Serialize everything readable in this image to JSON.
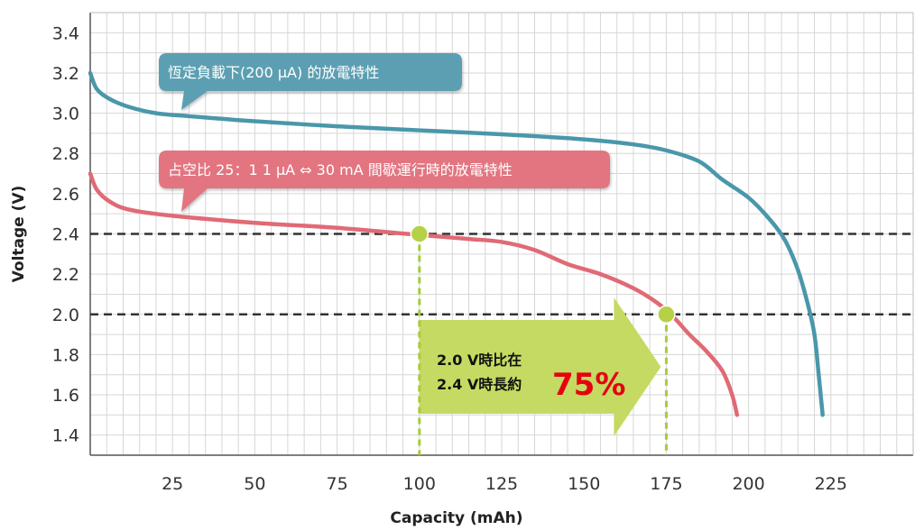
{
  "chart_data": {
    "type": "line",
    "xlabel": "Capacity (mAh)",
    "ylabel": "Voltage (V)",
    "xlim": [
      0,
      250
    ],
    "ylim": [
      1.3,
      3.5
    ],
    "xticks": [
      25,
      50,
      75,
      100,
      125,
      150,
      175,
      200,
      225
    ],
    "yticks": [
      1.4,
      1.6,
      1.8,
      2.0,
      2.2,
      2.4,
      2.6,
      2.8,
      3.0,
      3.2,
      3.4
    ],
    "grid": true,
    "reference_lines": [
      2.4,
      2.0
    ],
    "series": [
      {
        "name": "恆定負載下(200 μA) 的放電特性",
        "color": "#4a97ab",
        "points": [
          [
            0,
            3.2
          ],
          [
            2,
            3.12
          ],
          [
            6,
            3.07
          ],
          [
            12,
            3.03
          ],
          [
            20,
            3.0
          ],
          [
            30,
            2.985
          ],
          [
            50,
            2.96
          ],
          [
            75,
            2.935
          ],
          [
            100,
            2.915
          ],
          [
            125,
            2.895
          ],
          [
            150,
            2.87
          ],
          [
            165,
            2.845
          ],
          [
            175,
            2.815
          ],
          [
            185,
            2.76
          ],
          [
            192,
            2.67
          ],
          [
            200,
            2.58
          ],
          [
            206,
            2.48
          ],
          [
            211,
            2.37
          ],
          [
            215,
            2.22
          ],
          [
            218,
            2.05
          ],
          [
            220,
            1.9
          ],
          [
            221.3,
            1.7
          ],
          [
            222.5,
            1.5
          ]
        ]
      },
      {
        "name": "占空比 25：1 1 μA ⇔ 30 mA 間歇運行時的放電特性",
        "color": "#e06a75",
        "points": [
          [
            0,
            2.7
          ],
          [
            2,
            2.62
          ],
          [
            6,
            2.56
          ],
          [
            12,
            2.52
          ],
          [
            25,
            2.49
          ],
          [
            50,
            2.455
          ],
          [
            75,
            2.43
          ],
          [
            100,
            2.395
          ],
          [
            115,
            2.375
          ],
          [
            125,
            2.36
          ],
          [
            135,
            2.32
          ],
          [
            145,
            2.25
          ],
          [
            155,
            2.2
          ],
          [
            165,
            2.13
          ],
          [
            172,
            2.06
          ],
          [
            177,
            1.99
          ],
          [
            182,
            1.9
          ],
          [
            187,
            1.82
          ],
          [
            192,
            1.72
          ],
          [
            195,
            1.6
          ],
          [
            196.5,
            1.5
          ]
        ]
      }
    ],
    "markers": [
      {
        "x": 100,
        "y": 2.4
      },
      {
        "x": 175,
        "y": 2.0
      }
    ],
    "arrow": {
      "from_x": 100,
      "to_x": 175
    },
    "annotation": {
      "line1": "2.0  V時比在",
      "line2": "2.4  V時長約",
      "percent": "75%"
    }
  }
}
